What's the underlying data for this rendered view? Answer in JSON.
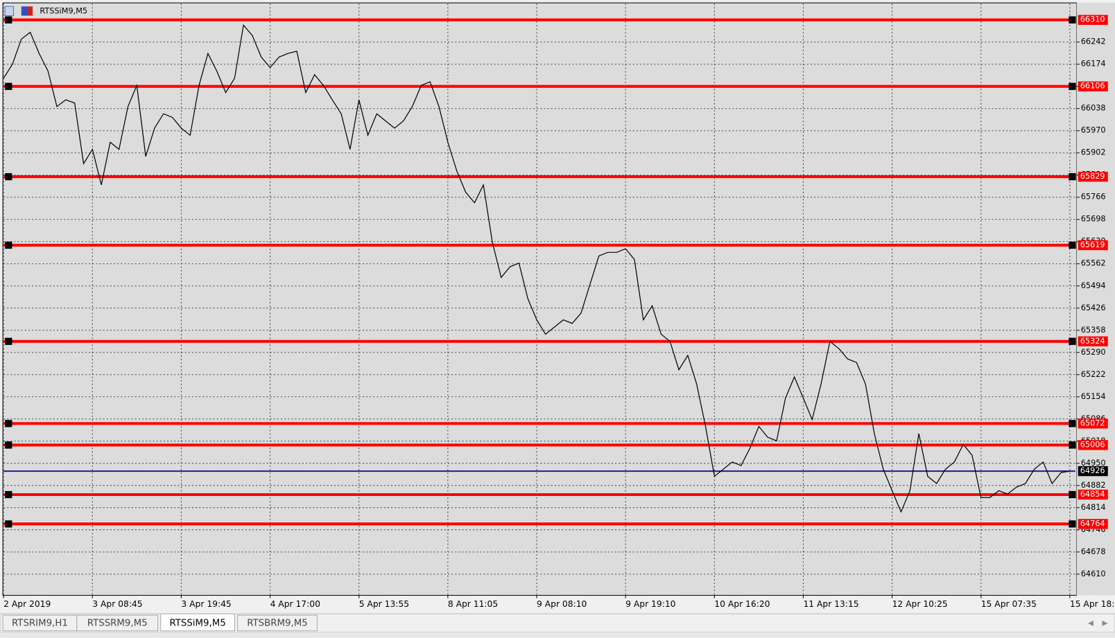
{
  "chart_data": {
    "type": "line",
    "title": "RTSSiM9,M5",
    "color": "#000000",
    "grid": true,
    "x": [
      0,
      1,
      2,
      3,
      4,
      5,
      6,
      7,
      8,
      9,
      10,
      11,
      12,
      13,
      14,
      15,
      16,
      17,
      18,
      19,
      20,
      21,
      22,
      23,
      24,
      25,
      26,
      27,
      28,
      29,
      30,
      31,
      32,
      33,
      34,
      35,
      36,
      37,
      38,
      39,
      40,
      41,
      42,
      43,
      44,
      45,
      46,
      47,
      48,
      49,
      50,
      51,
      52,
      53,
      54,
      55,
      56,
      57,
      58,
      59,
      60,
      61,
      62,
      63,
      64,
      65,
      66,
      67,
      68,
      69,
      70,
      71,
      72,
      73,
      74,
      75,
      76,
      77,
      78,
      79,
      80,
      81,
      82,
      83,
      84,
      85,
      86,
      87,
      88,
      89,
      90,
      91,
      92,
      93,
      94,
      95,
      96,
      97,
      98,
      99,
      100,
      101,
      102,
      103,
      104,
      105,
      106,
      107,
      108,
      109,
      110,
      111,
      112,
      113,
      114,
      115,
      116,
      117,
      118,
      119,
      120
    ],
    "values": [
      66131,
      66174,
      66251,
      66272,
      66207,
      66153,
      66044,
      66065,
      66055,
      65869,
      65913,
      65804,
      65935,
      65913,
      66044,
      66109,
      65891,
      65978,
      66022,
      66011,
      65978,
      65956,
      66109,
      66207,
      66153,
      66087,
      66131,
      66294,
      66262,
      66196,
      66164,
      66196,
      66207,
      66214,
      66087,
      66142,
      66109,
      66065,
      66022,
      65913,
      66065,
      65956,
      66022,
      66000,
      65978,
      66000,
      66044,
      66109,
      66120,
      66044,
      65935,
      65847,
      65782,
      65749,
      65804,
      65629,
      65520,
      65553,
      65564,
      65455,
      65390,
      65346,
      65368,
      65390,
      65379,
      65411,
      65499,
      65586,
      65597,
      65597,
      65608,
      65575,
      65390,
      65433,
      65346,
      65324,
      65237,
      65281,
      65193,
      65063,
      64910,
      64932,
      64954,
      64943,
      64997,
      65063,
      65030,
      65019,
      65150,
      65215,
      65150,
      65084,
      65193,
      65324,
      65302,
      65270,
      65259,
      65193,
      65041,
      64932,
      64866,
      64801,
      64866,
      65041,
      64910,
      64888,
      64932,
      64954,
      65008,
      64975,
      64845,
      64845,
      64866,
      64856,
      64877,
      64888,
      64932,
      64954,
      64888,
      64921,
      64926
    ],
    "xlim": [
      0,
      120.6
    ],
    "xticks": [
      {
        "value": 0,
        "label": "2 Apr 2019"
      },
      {
        "value": 10,
        "label": "3 Apr 08:45"
      },
      {
        "value": 20,
        "label": "3 Apr 19:45"
      },
      {
        "value": 30,
        "label": "4 Apr 17:00"
      },
      {
        "value": 40,
        "label": "5 Apr 13:55"
      },
      {
        "value": 50,
        "label": "8 Apr 11:05"
      },
      {
        "value": 60,
        "label": "9 Apr 08:10"
      },
      {
        "value": 70,
        "label": "9 Apr 19:10"
      },
      {
        "value": 80,
        "label": "10 Apr 16:20"
      },
      {
        "value": 90,
        "label": "11 Apr 13:15"
      },
      {
        "value": 100,
        "label": "12 Apr 10:25"
      },
      {
        "value": 110,
        "label": "15 Apr 07:35"
      },
      {
        "value": 120,
        "label": "15 Apr 18:35"
      }
    ],
    "ylim": [
      64545,
      66360
    ],
    "yticks": [
      66242,
      66174,
      66106,
      66038,
      65970,
      65902,
      65834,
      65766,
      65698,
      65630,
      65562,
      65494,
      65426,
      65358,
      65290,
      65222,
      65154,
      65086,
      65018,
      64950,
      64882,
      64814,
      64746,
      64678,
      64610
    ],
    "levels": [
      66310,
      66106,
      65829,
      65619,
      65324,
      65072,
      65006,
      64854,
      64764
    ],
    "level_color": "#ff0000",
    "current_price": 64926,
    "current_price_color": "#1a1a8c"
  },
  "tabs": [
    "RTSRIM9,H1",
    "RTSSRM9,M5",
    "RTSSiM9,M5",
    "RTSBRM9,M5"
  ]
}
